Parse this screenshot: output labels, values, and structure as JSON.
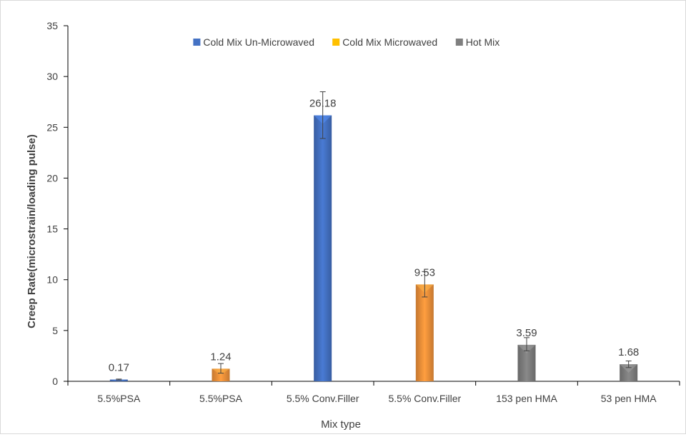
{
  "chart_data": {
    "type": "bar",
    "title": "",
    "xlabel": "Mix type",
    "ylabel": "Creep Rate(microstrain/loading pulse)",
    "ylim": [
      0,
      35
    ],
    "yticks": [
      0,
      5,
      10,
      15,
      20,
      25,
      30,
      35
    ],
    "categories": [
      "5.5%PSA",
      "5.5%PSA",
      "5.5% Conv.Filler",
      "5.5% Conv.Filler",
      "153 pen HMA",
      "53 pen HMA"
    ],
    "series": [
      {
        "name": "Cold Mix Un-Microwaved",
        "color": "#4472c4"
      },
      {
        "name": "Cold Mix Microwaved",
        "color": "#ffc000"
      },
      {
        "name": "Hot Mix",
        "color": "#7f7f7f"
      }
    ],
    "bars": [
      {
        "category_index": 0,
        "series_index": 0,
        "value": 0.17,
        "label": "0.17",
        "error": [
          0.12,
          0.22
        ],
        "color": "#4472c4"
      },
      {
        "category_index": 1,
        "series_index": 1,
        "value": 1.24,
        "label": "1.24",
        "error": [
          0.8,
          1.75
        ],
        "color": "#f0923a"
      },
      {
        "category_index": 2,
        "series_index": 0,
        "value": 26.18,
        "label": "26.18",
        "error": [
          23.9,
          28.5
        ],
        "color": "#4472c4"
      },
      {
        "category_index": 3,
        "series_index": 1,
        "value": 9.53,
        "label": "9.53",
        "error": [
          8.3,
          10.8
        ],
        "color": "#f0923a"
      },
      {
        "category_index": 4,
        "series_index": 2,
        "value": 3.59,
        "label": "3.59",
        "error": [
          3.0,
          4.3
        ],
        "color": "#7f7f7f"
      },
      {
        "category_index": 5,
        "series_index": 2,
        "value": 1.68,
        "label": "1.68",
        "error": [
          1.35,
          2.0
        ],
        "color": "#7f7f7f"
      }
    ],
    "grid": false,
    "legend_position": "top"
  }
}
